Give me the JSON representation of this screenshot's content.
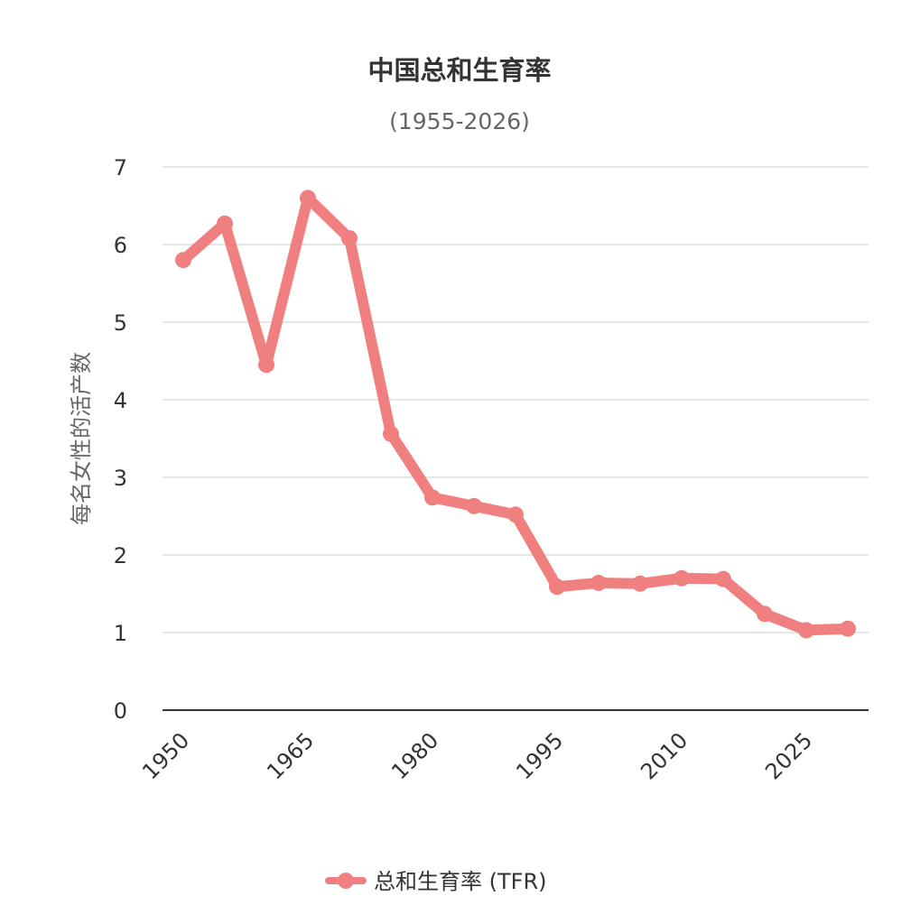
{
  "chart_data": {
    "type": "line",
    "title": "中国总和生育率",
    "subtitle": "(1955-2026)",
    "ylabel": "每名女性的活产数",
    "xlabel": "",
    "x": [
      1950,
      1955,
      1960,
      1965,
      1970,
      1975,
      1980,
      1985,
      1990,
      1995,
      2000,
      2005,
      2010,
      2015,
      2020,
      2025,
      2030
    ],
    "x_tick_labels": [
      "1950",
      "1965",
      "1980",
      "1995",
      "2010",
      "2025"
    ],
    "y_tick_labels": [
      "0",
      "1",
      "2",
      "3",
      "4",
      "5",
      "6",
      "7"
    ],
    "ylim": [
      0,
      7
    ],
    "grid": true,
    "legend_position": "bottom",
    "series": [
      {
        "name": "总和生育率 (TFR)",
        "color": "#f08080",
        "values": [
          5.8,
          6.27,
          4.45,
          6.6,
          6.08,
          3.56,
          2.74,
          2.63,
          2.52,
          1.59,
          1.64,
          1.63,
          1.7,
          1.69,
          1.24,
          1.03,
          1.05
        ]
      }
    ]
  }
}
